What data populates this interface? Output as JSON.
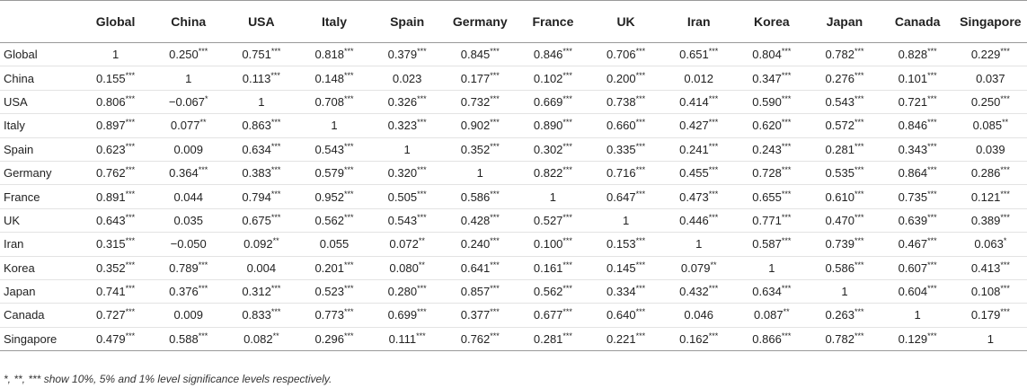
{
  "table": {
    "headers": [
      "",
      "Global",
      "China",
      "USA",
      "Italy",
      "Spain",
      "Germany",
      "France",
      "UK",
      "Iran",
      "Korea",
      "Japan",
      "Canada",
      "Singapore"
    ],
    "rows": [
      {
        "label": "Global",
        "cells": [
          [
            "1",
            ""
          ],
          [
            "0.250",
            "***"
          ],
          [
            "0.751",
            "***"
          ],
          [
            "0.818",
            "***"
          ],
          [
            "0.379",
            "***"
          ],
          [
            "0.845",
            "***"
          ],
          [
            "0.846",
            "***"
          ],
          [
            "0.706",
            "***"
          ],
          [
            "0.651",
            "***"
          ],
          [
            "0.804",
            "***"
          ],
          [
            "0.782",
            "***"
          ],
          [
            "0.828",
            "***"
          ],
          [
            "0.229",
            "***"
          ]
        ]
      },
      {
        "label": "China",
        "cells": [
          [
            "0.155",
            "***"
          ],
          [
            "1",
            ""
          ],
          [
            "0.113",
            "***"
          ],
          [
            "0.148",
            "***"
          ],
          [
            "0.023",
            ""
          ],
          [
            "0.177",
            "***"
          ],
          [
            "0.102",
            "***"
          ],
          [
            "0.200",
            "***"
          ],
          [
            "0.012",
            ""
          ],
          [
            "0.347",
            "***"
          ],
          [
            "0.276",
            "***"
          ],
          [
            "0.101",
            "***"
          ],
          [
            "0.037",
            ""
          ]
        ]
      },
      {
        "label": "USA",
        "cells": [
          [
            "0.806",
            "***"
          ],
          [
            "−0.067",
            "*"
          ],
          [
            "1",
            ""
          ],
          [
            "0.708",
            "***"
          ],
          [
            "0.326",
            "***"
          ],
          [
            "0.732",
            "***"
          ],
          [
            "0.669",
            "***"
          ],
          [
            "0.738",
            "***"
          ],
          [
            "0.414",
            "***"
          ],
          [
            "0.590",
            "***"
          ],
          [
            "0.543",
            "***"
          ],
          [
            "0.721",
            "***"
          ],
          [
            "0.250",
            "***"
          ]
        ]
      },
      {
        "label": "Italy",
        "cells": [
          [
            "0.897",
            "***"
          ],
          [
            "0.077",
            "**"
          ],
          [
            "0.863",
            "***"
          ],
          [
            "1",
            ""
          ],
          [
            "0.323",
            "***"
          ],
          [
            "0.902",
            "***"
          ],
          [
            "0.890",
            "***"
          ],
          [
            "0.660",
            "***"
          ],
          [
            "0.427",
            "***"
          ],
          [
            "0.620",
            "***"
          ],
          [
            "0.572",
            "***"
          ],
          [
            "0.846",
            "***"
          ],
          [
            "0.085",
            "**"
          ]
        ]
      },
      {
        "label": "Spain",
        "cells": [
          [
            "0.623",
            "***"
          ],
          [
            "0.009",
            ""
          ],
          [
            "0.634",
            "***"
          ],
          [
            "0.543",
            "***"
          ],
          [
            "1",
            ""
          ],
          [
            "0.352",
            "***"
          ],
          [
            "0.302",
            "***"
          ],
          [
            "0.335",
            "***"
          ],
          [
            "0.241",
            "***"
          ],
          [
            "0.243",
            "***"
          ],
          [
            "0.281",
            "***"
          ],
          [
            "0.343",
            "***"
          ],
          [
            "0.039",
            ""
          ]
        ]
      },
      {
        "label": "Germany",
        "cells": [
          [
            "0.762",
            "***"
          ],
          [
            "0.364",
            "***"
          ],
          [
            "0.383",
            "***"
          ],
          [
            "0.579",
            "***"
          ],
          [
            "0.320",
            "***"
          ],
          [
            "1",
            ""
          ],
          [
            "0.822",
            "***"
          ],
          [
            "0.716",
            "***"
          ],
          [
            "0.455",
            "***"
          ],
          [
            "0.728",
            "***"
          ],
          [
            "0.535",
            "***"
          ],
          [
            "0.864",
            "***"
          ],
          [
            "0.286",
            "***"
          ]
        ]
      },
      {
        "label": "France",
        "cells": [
          [
            "0.891",
            "***"
          ],
          [
            "0.044",
            ""
          ],
          [
            "0.794",
            "***"
          ],
          [
            "0.952",
            "***"
          ],
          [
            "0.505",
            "***"
          ],
          [
            "0.586",
            "***"
          ],
          [
            "1",
            ""
          ],
          [
            "0.647",
            "***"
          ],
          [
            "0.473",
            "***"
          ],
          [
            "0.655",
            "***"
          ],
          [
            "0.610",
            "***"
          ],
          [
            "0.735",
            "***"
          ],
          [
            "0.121",
            "***"
          ]
        ]
      },
      {
        "label": "UK",
        "cells": [
          [
            "0.643",
            "***"
          ],
          [
            "0.035",
            ""
          ],
          [
            "0.675",
            "***"
          ],
          [
            "0.562",
            "***"
          ],
          [
            "0.543",
            "***"
          ],
          [
            "0.428",
            "***"
          ],
          [
            "0.527",
            "***"
          ],
          [
            "1",
            ""
          ],
          [
            "0.446",
            "***"
          ],
          [
            "0.771",
            "***"
          ],
          [
            "0.470",
            "***"
          ],
          [
            "0.639",
            "***"
          ],
          [
            "0.389",
            "***"
          ]
        ]
      },
      {
        "label": "Iran",
        "cells": [
          [
            "0.315",
            "***"
          ],
          [
            "−0.050",
            ""
          ],
          [
            "0.092",
            "**"
          ],
          [
            "0.055",
            ""
          ],
          [
            "0.072",
            "**"
          ],
          [
            "0.240",
            "***"
          ],
          [
            "0.100",
            "***"
          ],
          [
            "0.153",
            "***"
          ],
          [
            "1",
            ""
          ],
          [
            "0.587",
            "***"
          ],
          [
            "0.739",
            "***"
          ],
          [
            "0.467",
            "***"
          ],
          [
            "0.063",
            "*"
          ]
        ]
      },
      {
        "label": "Korea",
        "cells": [
          [
            "0.352",
            "***"
          ],
          [
            "0.789",
            "***"
          ],
          [
            "0.004",
            ""
          ],
          [
            "0.201",
            "***"
          ],
          [
            "0.080",
            "**"
          ],
          [
            "0.641",
            "***"
          ],
          [
            "0.161",
            "***"
          ],
          [
            "0.145",
            "***"
          ],
          [
            "0.079",
            "**"
          ],
          [
            "1",
            ""
          ],
          [
            "0.586",
            "***"
          ],
          [
            "0.607",
            "***"
          ],
          [
            "0.413",
            "***"
          ]
        ]
      },
      {
        "label": "Japan",
        "cells": [
          [
            "0.741",
            "***"
          ],
          [
            "0.376",
            "***"
          ],
          [
            "0.312",
            "***"
          ],
          [
            "0.523",
            "***"
          ],
          [
            "0.280",
            "***"
          ],
          [
            "0.857",
            "***"
          ],
          [
            "0.562",
            "***"
          ],
          [
            "0.334",
            "***"
          ],
          [
            "0.432",
            "***"
          ],
          [
            "0.634",
            "***"
          ],
          [
            "1",
            ""
          ],
          [
            "0.604",
            "***"
          ],
          [
            "0.108",
            "***"
          ]
        ]
      },
      {
        "label": "Canada",
        "cells": [
          [
            "0.727",
            "***"
          ],
          [
            "0.009",
            ""
          ],
          [
            "0.833",
            "***"
          ],
          [
            "0.773",
            "***"
          ],
          [
            "0.699",
            "***"
          ],
          [
            "0.377",
            "***"
          ],
          [
            "0.677",
            "***"
          ],
          [
            "0.640",
            "***"
          ],
          [
            "0.046",
            ""
          ],
          [
            "0.087",
            "**"
          ],
          [
            "0.263",
            "***"
          ],
          [
            "1",
            ""
          ],
          [
            "0.179",
            "***"
          ]
        ]
      },
      {
        "label": "Singapore",
        "cells": [
          [
            "0.479",
            "***"
          ],
          [
            "0.588",
            "***"
          ],
          [
            "0.082",
            "**"
          ],
          [
            "0.296",
            "***"
          ],
          [
            "0.111",
            "***"
          ],
          [
            "0.762",
            "***"
          ],
          [
            "0.281",
            "***"
          ],
          [
            "0.221",
            "***"
          ],
          [
            "0.162",
            "***"
          ],
          [
            "0.866",
            "***"
          ],
          [
            "0.782",
            "***"
          ],
          [
            "0.129",
            "***"
          ],
          [
            "1",
            ""
          ]
        ]
      }
    ]
  },
  "footnote": "*, **, *** show 10%, 5% and 1% level significance levels respectively."
}
